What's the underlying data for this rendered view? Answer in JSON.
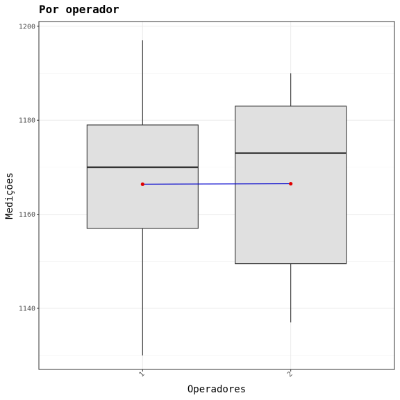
{
  "chart_data": {
    "type": "box",
    "title": "Por operador",
    "xlabel": "Operadores",
    "ylabel": "Medições",
    "categories": [
      "1",
      "2"
    ],
    "ylim": [
      1127,
      1201
    ],
    "yticks": [
      1140,
      1160,
      1180,
      1200
    ],
    "boxes": [
      {
        "category": "1",
        "min": 1130,
        "q1": 1157,
        "median": 1170,
        "q3": 1179,
        "max": 1197
      },
      {
        "category": "2",
        "min": 1137,
        "q1": 1149.5,
        "median": 1173,
        "q3": 1183,
        "max": 1190
      }
    ],
    "mean_line": {
      "values": [
        1166.4,
        1166.5
      ],
      "line_color": "#0000cc",
      "point_color": "#e00000"
    },
    "box_fill": "#e0e0e0",
    "grid": true
  }
}
